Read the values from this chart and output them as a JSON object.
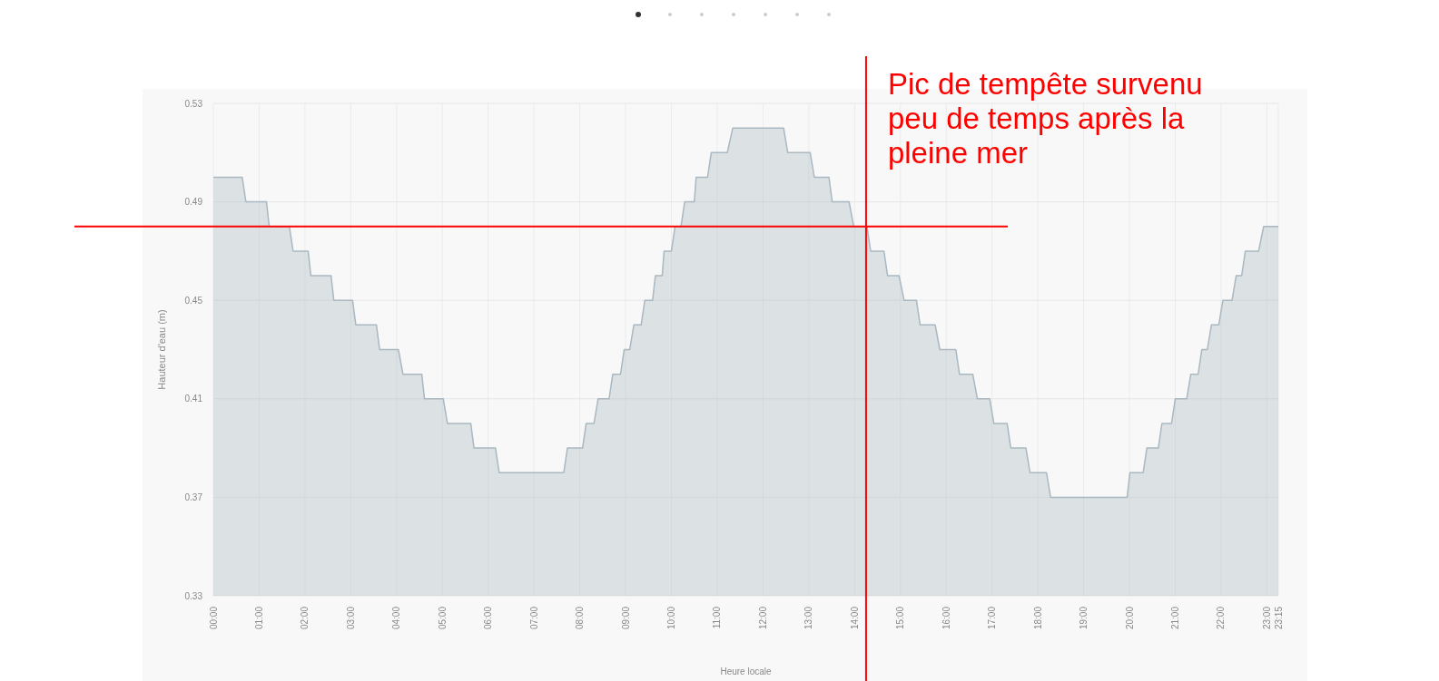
{
  "chart_data": {
    "type": "area",
    "xlabel": "Heure locale",
    "ylabel": "Hauteur d'eau (m)",
    "x": [
      0,
      0.63,
      0.71,
      1.16,
      1.22,
      1.66,
      1.74,
      2.07,
      2.13,
      2.57,
      2.63,
      3.04,
      3.11,
      3.56,
      3.63,
      4.04,
      4.14,
      4.55,
      4.61,
      5.02,
      5.11,
      5.62,
      5.69,
      6.16,
      6.24,
      7.65,
      7.73,
      8.06,
      8.14,
      8.31,
      8.4,
      8.64,
      8.72,
      8.89,
      8.97,
      9.09,
      9.18,
      9.34,
      9.42,
      9.59,
      9.65,
      9.8,
      9.84,
      10,
      10.08,
      10.21,
      10.29,
      10.5,
      10.54,
      10.79,
      10.87,
      11.22,
      11.34,
      12.45,
      12.54,
      13.03,
      13.12,
      13.44,
      13.51,
      13.88,
      13.98,
      14.27,
      14.35,
      14.64,
      14.72,
      14.97,
      15.08,
      15.35,
      15.43,
      15.76,
      15.86,
      16.21,
      16.29,
      16.58,
      16.68,
      16.95,
      17.04,
      17.33,
      17.41,
      17.74,
      17.83,
      18.19,
      18.28,
      19.95,
      20.01,
      20.3,
      20.38,
      20.63,
      20.71,
      20.92,
      21,
      21.25,
      21.34,
      21.5,
      21.58,
      21.7,
      21.79,
      21.95,
      22.04,
      22.24,
      22.33,
      22.45,
      22.53,
      22.82,
      22.93,
      23.25
    ],
    "series": [
      {
        "color": "#a9b8c1",
        "values": [
          0.5,
          0.5,
          0.49,
          0.49,
          0.48,
          0.48,
          0.47,
          0.47,
          0.46,
          0.46,
          0.45,
          0.45,
          0.44,
          0.44,
          0.43,
          0.43,
          0.42,
          0.42,
          0.41,
          0.41,
          0.4,
          0.4,
          0.39,
          0.39,
          0.38,
          0.38,
          0.39,
          0.39,
          0.4,
          0.4,
          0.41,
          0.41,
          0.42,
          0.42,
          0.43,
          0.43,
          0.44,
          0.44,
          0.45,
          0.45,
          0.46,
          0.46,
          0.47,
          0.47,
          0.48,
          0.48,
          0.49,
          0.49,
          0.5,
          0.5,
          0.51,
          0.51,
          0.52,
          0.52,
          0.51,
          0.51,
          0.5,
          0.5,
          0.49,
          0.49,
          0.48,
          0.48,
          0.47,
          0.47,
          0.46,
          0.46,
          0.45,
          0.45,
          0.44,
          0.44,
          0.43,
          0.43,
          0.42,
          0.42,
          0.41,
          0.41,
          0.4,
          0.4,
          0.39,
          0.39,
          0.38,
          0.38,
          0.37,
          0.37,
          0.38,
          0.38,
          0.39,
          0.39,
          0.4,
          0.4,
          0.41,
          0.41,
          0.42,
          0.42,
          0.43,
          0.43,
          0.44,
          0.44,
          0.45,
          0.45,
          0.46,
          0.46,
          0.47,
          0.47,
          0.48,
          0.48
        ]
      }
    ],
    "xlim": [
      0,
      23.25
    ],
    "xticks": [
      {
        "value": 0,
        "label": "00:00"
      },
      {
        "value": 1,
        "label": "01:00"
      },
      {
        "value": 2,
        "label": "02:00"
      },
      {
        "value": 3,
        "label": "03:00"
      },
      {
        "value": 4,
        "label": "04:00"
      },
      {
        "value": 5,
        "label": "05:00"
      },
      {
        "value": 6,
        "label": "06:00"
      },
      {
        "value": 7,
        "label": "07:00"
      },
      {
        "value": 8,
        "label": "08:00"
      },
      {
        "value": 9,
        "label": "09:00"
      },
      {
        "value": 10,
        "label": "10:00"
      },
      {
        "value": 11,
        "label": "11:00"
      },
      {
        "value": 12,
        "label": "12:00"
      },
      {
        "value": 13,
        "label": "13:00"
      },
      {
        "value": 14,
        "label": "14:00"
      },
      {
        "value": 15,
        "label": "15:00"
      },
      {
        "value": 16,
        "label": "16:00"
      },
      {
        "value": 17,
        "label": "17:00"
      },
      {
        "value": 18,
        "label": "18:00"
      },
      {
        "value": 19,
        "label": "19:00"
      },
      {
        "value": 20,
        "label": "20:00"
      },
      {
        "value": 21,
        "label": "21:00"
      },
      {
        "value": 22,
        "label": "22:00"
      },
      {
        "value": 23,
        "label": "23:00"
      },
      {
        "value": 23.25,
        "label": "23:15"
      }
    ],
    "ylim": [
      0.33,
      0.53
    ],
    "yticks": [
      0.33,
      0.37,
      0.41,
      0.45,
      0.49,
      0.53
    ],
    "grid": true,
    "ref_lines": [
      {
        "axis": "y",
        "value": 0.48,
        "color": "#ff0000"
      },
      {
        "axis": "x",
        "value": 14.25,
        "color": "#ff0000",
        "label": "Pic de tempête survenu peu de temps après la pleine mer"
      }
    ]
  }
}
